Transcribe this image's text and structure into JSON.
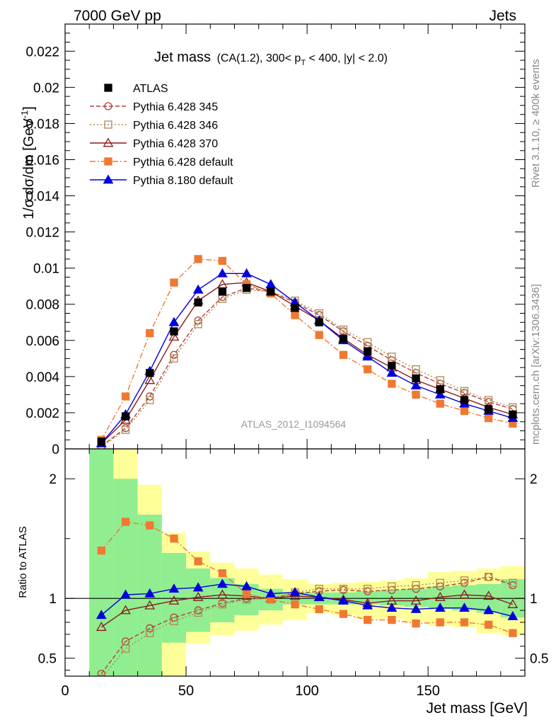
{
  "header": {
    "left": "7000 GeV pp",
    "right": "Jets"
  },
  "side_labels": {
    "top": "Rivet 3.1.10, ≥ 400k events",
    "bottom": "mcplots.cern.ch [arXiv:1306.3436]"
  },
  "chart_data": {
    "type": "line",
    "title": "Jet mass",
    "title_detail": "(CA(1.2), 300< p",
    "title_detail_sub": "T",
    "title_detail_rest": " < 400, |y| < 2.0)",
    "watermark": "ATLAS_2012_I1094564",
    "xlabel": "Jet mass [GeV]",
    "ylabel": "1/σ dσ/dm [GeV",
    "ylabel_sup": "-1",
    "ylabel_end": "]",
    "ratio_ylabel": "Ratio to ATLAS",
    "xlim": [
      0,
      190
    ],
    "ylim": [
      0,
      0.0235
    ],
    "ratio_ylim": [
      0.35,
      2.25
    ],
    "x_ticks": [
      "0",
      "50",
      "100",
      "150"
    ],
    "y_ticks": [
      "0",
      "0.002",
      "0.004",
      "0.006",
      "0.008",
      "0.01",
      "0.012",
      "0.014",
      "0.016",
      "0.018",
      "0.02",
      "0.022"
    ],
    "ratio_y_ticks": [
      "0.5",
      "1",
      "2"
    ],
    "x": [
      15,
      25,
      35,
      45,
      55,
      65,
      75,
      85,
      95,
      105,
      115,
      125,
      135,
      145,
      155,
      165,
      175,
      185
    ],
    "series": [
      {
        "name": "ATLAS",
        "color": "#000000",
        "marker": "filled-square",
        "line": "none",
        "values": [
          0.0004,
          0.0018,
          0.0042,
          0.0065,
          0.0081,
          0.0087,
          0.0089,
          0.0087,
          0.0078,
          0.007,
          0.0061,
          0.0054,
          0.0046,
          0.0039,
          0.0033,
          0.0027,
          0.0022,
          0.0019
        ],
        "ratio": [
          1,
          1,
          1,
          1,
          1,
          1,
          1,
          1,
          1,
          1,
          1,
          1,
          1,
          1,
          1,
          1,
          1,
          1
        ]
      },
      {
        "name": "Pythia 6.428 345",
        "color": "#b04040",
        "marker": "open-circle",
        "line": "dashed",
        "values": [
          0.00015,
          0.00115,
          0.0029,
          0.0052,
          0.0071,
          0.0084,
          0.0089,
          0.0087,
          0.0081,
          0.0074,
          0.0065,
          0.0057,
          0.0049,
          0.0042,
          0.0036,
          0.0031,
          0.0026,
          0.0022
        ],
        "ratio": [
          0.37,
          0.64,
          0.75,
          0.84,
          0.9,
          0.96,
          1.0,
          1.0,
          1.04,
          1.06,
          1.07,
          1.06,
          1.07,
          1.08,
          1.1,
          1.13,
          1.18,
          1.11
        ]
      },
      {
        "name": "Pythia 6.428 346",
        "color": "#b08850",
        "marker": "open-square",
        "line": "dotted",
        "values": [
          0.00012,
          0.00105,
          0.0027,
          0.005,
          0.0069,
          0.0083,
          0.0088,
          0.0087,
          0.0082,
          0.0075,
          0.0066,
          0.0059,
          0.0051,
          0.0044,
          0.0038,
          0.0032,
          0.0027,
          0.0023
        ],
        "ratio": [
          0.33,
          0.58,
          0.71,
          0.81,
          0.88,
          0.95,
          0.99,
          1.0,
          1.05,
          1.08,
          1.08,
          1.08,
          1.1,
          1.11,
          1.13,
          1.15,
          1.18,
          1.13
        ]
      },
      {
        "name": "Pythia 6.428 370",
        "color": "#8b1a1a",
        "marker": "open-triangle",
        "line": "solid",
        "values": [
          0.0003,
          0.0016,
          0.0038,
          0.0062,
          0.0082,
          0.0091,
          0.0092,
          0.0087,
          0.0079,
          0.0071,
          0.0061,
          0.0052,
          0.0045,
          0.0038,
          0.0033,
          0.0028,
          0.0023,
          0.0019
        ],
        "ratio": [
          0.76,
          0.9,
          0.94,
          0.98,
          1.01,
          1.03,
          1.02,
          1.0,
          1.02,
          1.01,
          0.99,
          0.96,
          0.98,
          0.98,
          1.01,
          1.03,
          1.02,
          0.95
        ]
      },
      {
        "name": "Pythia 6.428 default",
        "color": "#f07830",
        "marker": "filled-square",
        "line": "dashdot",
        "values": [
          0.0005,
          0.0029,
          0.0064,
          0.0092,
          0.0105,
          0.0104,
          0.0091,
          0.0086,
          0.0074,
          0.0063,
          0.0052,
          0.0044,
          0.0036,
          0.003,
          0.0025,
          0.0021,
          0.0017,
          0.0014
        ],
        "ratio": [
          1.4,
          1.64,
          1.61,
          1.5,
          1.31,
          1.21,
          1.04,
          0.99,
          0.95,
          0.91,
          0.87,
          0.82,
          0.82,
          0.79,
          0.8,
          0.8,
          0.78,
          0.71
        ]
      },
      {
        "name": "Pythia 8.180 default",
        "color": "#0000dd",
        "marker": "filled-triangle",
        "line": "solid",
        "values": [
          0.0003,
          0.0019,
          0.0043,
          0.007,
          0.0088,
          0.0097,
          0.0097,
          0.0091,
          0.0081,
          0.0071,
          0.006,
          0.0051,
          0.0042,
          0.0035,
          0.003,
          0.0025,
          0.0021,
          0.0017
        ],
        "ratio": [
          0.86,
          1.03,
          1.04,
          1.08,
          1.09,
          1.12,
          1.1,
          1.04,
          1.05,
          1.01,
          0.98,
          0.94,
          0.92,
          0.91,
          0.92,
          0.92,
          0.9,
          0.85
        ]
      }
    ],
    "ratio_bands": {
      "x_edges": [
        10,
        20,
        30,
        40,
        50,
        60,
        70,
        80,
        90,
        100,
        110,
        120,
        130,
        140,
        150,
        160,
        170,
        180,
        190
      ],
      "inner_color": "#90ee90",
      "outer_color": "#ffff99",
      "inner_lo": [
        0.3,
        0.3,
        0.3,
        0.63,
        0.72,
        0.8,
        0.86,
        0.9,
        0.95,
        0.95,
        0.95,
        0.95,
        0.94,
        0.93,
        0.91,
        0.9,
        0.88,
        0.84
      ],
      "inner_hi": [
        2.4,
        2.0,
        1.7,
        1.38,
        1.25,
        1.17,
        1.12,
        1.08,
        1.05,
        1.05,
        1.05,
        1.06,
        1.07,
        1.08,
        1.1,
        1.11,
        1.12,
        1.16
      ],
      "outer_lo": [
        0.3,
        0.3,
        0.3,
        0.3,
        0.62,
        0.69,
        0.73,
        0.78,
        0.82,
        0.88,
        0.86,
        0.83,
        0.83,
        0.8,
        0.77,
        0.76,
        0.71,
        0.69
      ],
      "outer_hi": [
        2.4,
        2.4,
        1.95,
        1.55,
        1.39,
        1.3,
        1.25,
        1.2,
        1.16,
        1.12,
        1.13,
        1.14,
        1.15,
        1.17,
        1.22,
        1.23,
        1.25,
        1.27
      ]
    }
  }
}
